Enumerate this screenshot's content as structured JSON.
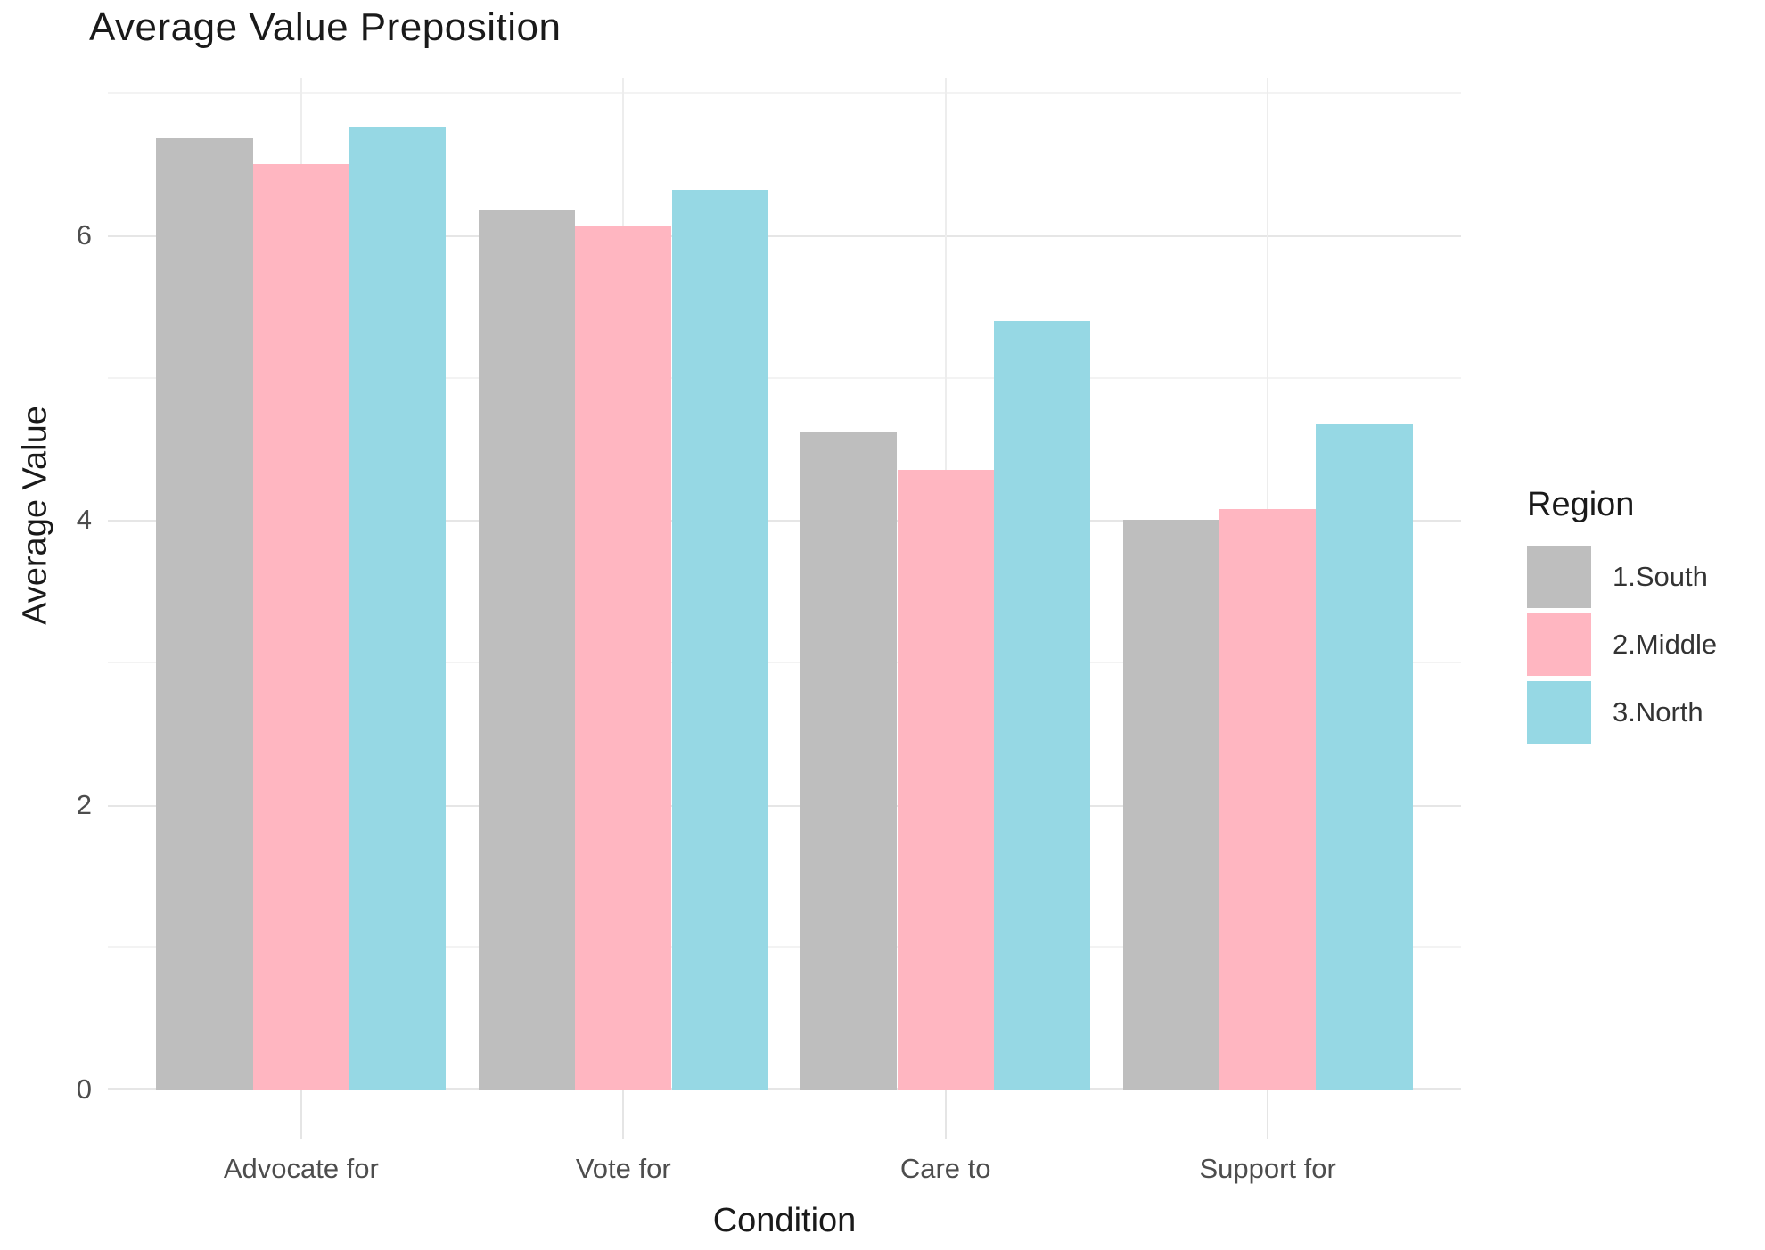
{
  "chart": {
    "title": "Average Value Preposition",
    "xlabel": "Condition",
    "ylabel": "Average Value",
    "legend_title": "Region"
  },
  "chart_data": {
    "type": "bar",
    "title": "Average Value Preposition",
    "xlabel": "Condition",
    "ylabel": "Average Value",
    "categories": [
      "Advocate for",
      "Vote for",
      "Care to",
      "Support for"
    ],
    "series": [
      {
        "name": "1.South",
        "color": "#BEBEBE",
        "values": [
          6.68,
          6.18,
          4.62,
          4.0
        ]
      },
      {
        "name": "2.Middle",
        "color": "#FFB6C1",
        "values": [
          6.5,
          6.07,
          4.35,
          4.08
        ]
      },
      {
        "name": "3.North",
        "color": "#96D8E4",
        "values": [
          6.76,
          6.32,
          5.4,
          4.67
        ]
      }
    ],
    "legend": {
      "title": "Region",
      "position": "right"
    },
    "y_major_ticks": [
      0,
      2,
      4,
      6
    ],
    "y_minor_ticks": [
      1,
      3,
      5,
      7
    ],
    "ylim": [
      0,
      7.1
    ],
    "grid": true,
    "bar_group_width": 0.9
  }
}
